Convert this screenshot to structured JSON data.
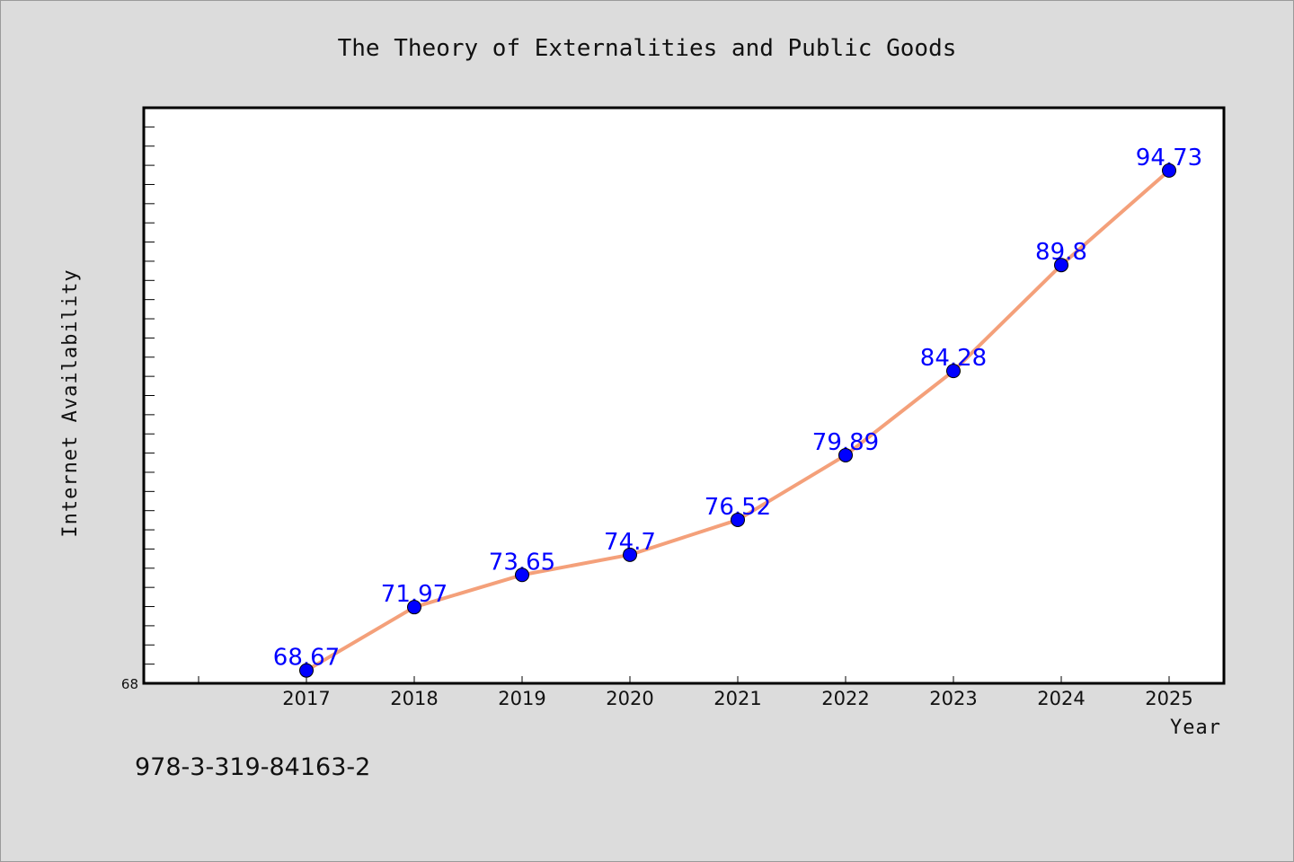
{
  "chart_data": {
    "type": "line",
    "title": "The Theory of Externalities and Public Goods",
    "xlabel": "Year",
    "ylabel": "Internet Availability",
    "categories": [
      "2017",
      "2018",
      "2019",
      "2020",
      "2021",
      "2022",
      "2023",
      "2024",
      "2025"
    ],
    "series": [
      {
        "values": [
          68.67,
          71.97,
          73.65,
          74.7,
          76.52,
          79.89,
          84.28,
          89.8,
          94.73
        ],
        "labels": [
          "68.67",
          "71.97",
          "73.65",
          "74.7",
          "76.52",
          "79.89",
          "84.28",
          "89.8",
          "94.73"
        ]
      }
    ],
    "ylim": [
      68,
      98
    ],
    "y_tick_labels": [
      "68"
    ],
    "grid": false,
    "line_color": "#f4a07a",
    "marker_color": "#0000ff",
    "label_color": "#0000ff"
  },
  "footer_text": "978-3-319-84163-2"
}
